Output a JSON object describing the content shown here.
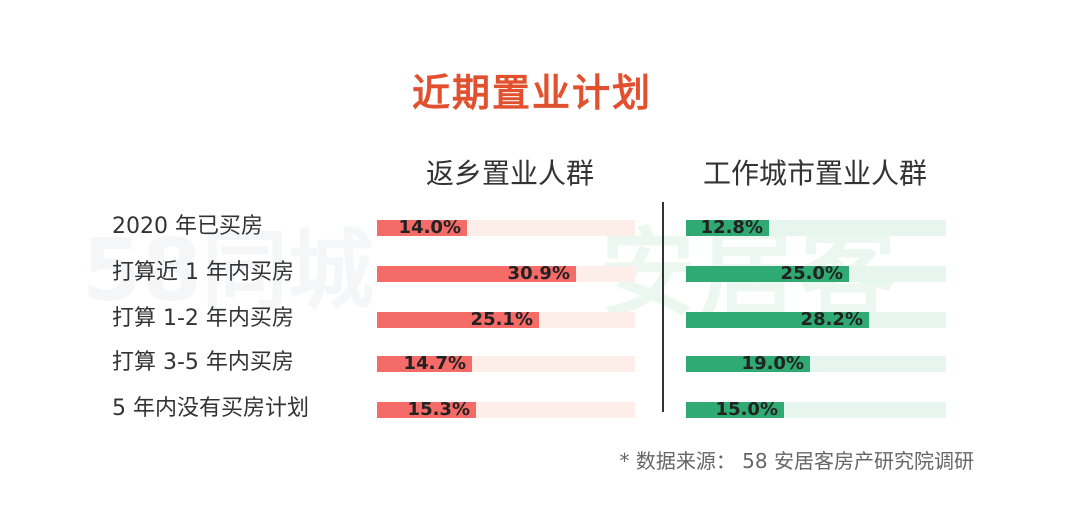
{
  "chart_data": {
    "type": "bar",
    "title": "近期置业计划",
    "categories": [
      "2020 年已买房",
      "打算近 1 年内买房",
      "打算 1-2 年内买房",
      "打算 3-5 年内买房",
      "5 年内没有买房计划"
    ],
    "series": [
      {
        "name": "返乡置业人群",
        "values": [
          14.0,
          30.9,
          25.1,
          14.7,
          15.3
        ],
        "color": "#f46b68"
      },
      {
        "name": "工作城市置业人群",
        "values": [
          12.8,
          25.0,
          28.2,
          19.0,
          15.0
        ],
        "color": "#2faa73"
      }
    ],
    "value_labels": [
      [
        "14.0%",
        "30.9%",
        "25.1%",
        "14.7%",
        "15.3%"
      ],
      [
        "12.8%",
        "25.0%",
        "28.2%",
        "19.0%",
        "15.0%"
      ]
    ],
    "xlim": [
      0,
      40
    ],
    "orientation": "horizontal",
    "source_note": "* 数据来源： 58 安居客房产研究院调研"
  },
  "watermark": {
    "left": "58同城",
    "right": "安居客"
  }
}
